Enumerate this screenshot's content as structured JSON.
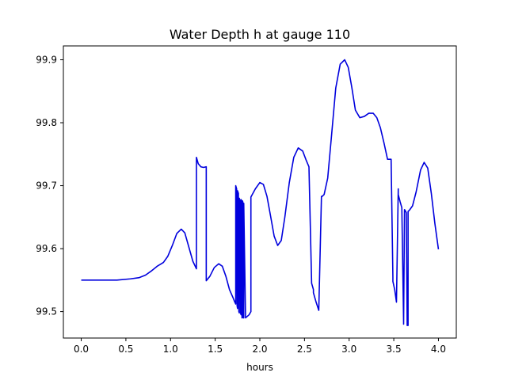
{
  "chart_data": {
    "type": "line",
    "title": "Water Depth h at gauge 110",
    "xlabel": "hours",
    "ylabel": "",
    "xlim": [
      -0.2,
      4.2
    ],
    "ylim": [
      99.458,
      99.922
    ],
    "xticks": [
      0.0,
      0.5,
      1.0,
      1.5,
      2.0,
      2.5,
      3.0,
      3.5,
      4.0
    ],
    "xtick_labels": [
      "0.0",
      "0.5",
      "1.0",
      "1.5",
      "2.0",
      "2.5",
      "3.0",
      "3.5",
      "4.0"
    ],
    "yticks": [
      99.5,
      99.6,
      99.7,
      99.8,
      99.9
    ],
    "ytick_labels": [
      "99.5",
      "99.6",
      "99.7",
      "99.8",
      "99.9"
    ],
    "grid": false,
    "line_color": "#0000dd",
    "series": [
      {
        "x": [
          0.0,
          0.2,
          0.4,
          0.55,
          0.65,
          0.72,
          0.78,
          0.85,
          0.92,
          0.97,
          1.02,
          1.07,
          1.12,
          1.16,
          1.2,
          1.25,
          1.29,
          1.29,
          1.31,
          1.34,
          1.37,
          1.4,
          1.4,
          1.44,
          1.49,
          1.54,
          1.58,
          1.62,
          1.66,
          1.7,
          1.72,
          1.73,
          1.73,
          1.74,
          1.745,
          1.75,
          1.75,
          1.76,
          1.765,
          1.77,
          1.77,
          1.78,
          1.785,
          1.79,
          1.79,
          1.795,
          1.8,
          1.805,
          1.805,
          1.81,
          1.815,
          1.82,
          1.82,
          1.84,
          1.88,
          1.9,
          1.9,
          1.95,
          2.0,
          2.04,
          2.08,
          2.12,
          2.16,
          2.2,
          2.24,
          2.28,
          2.33,
          2.38,
          2.43,
          2.48,
          2.52,
          2.55,
          2.58,
          2.6,
          2.6,
          2.63,
          2.66,
          2.69,
          2.69,
          2.72,
          2.76,
          2.8,
          2.85,
          2.9,
          2.95,
          2.99,
          3.03,
          3.07,
          3.12,
          3.17,
          3.22,
          3.27,
          3.31,
          3.35,
          3.39,
          3.43,
          3.47,
          3.49,
          3.49,
          3.51,
          3.53,
          3.55,
          3.55,
          3.57,
          3.59,
          3.61,
          3.61,
          3.62,
          3.63,
          3.64,
          3.65,
          3.66,
          3.66,
          3.68,
          3.71,
          3.75,
          3.8,
          3.84,
          3.88,
          3.92,
          3.96,
          4.0
        ],
        "y": [
          99.55,
          99.55,
          99.55,
          99.552,
          99.554,
          99.558,
          99.564,
          99.572,
          99.578,
          99.588,
          99.605,
          99.624,
          99.631,
          99.625,
          99.605,
          99.58,
          99.568,
          99.745,
          99.735,
          99.73,
          99.729,
          99.73,
          99.549,
          99.556,
          99.57,
          99.576,
          99.572,
          99.556,
          99.535,
          99.522,
          99.515,
          99.512,
          99.7,
          99.695,
          99.51,
          99.505,
          99.692,
          99.688,
          99.5,
          99.498,
          99.68,
          99.675,
          99.497,
          99.495,
          99.678,
          99.676,
          99.49,
          99.492,
          99.676,
          99.674,
          99.49,
          99.49,
          99.672,
          99.49,
          99.495,
          99.5,
          99.682,
          99.695,
          99.705,
          99.702,
          99.683,
          99.652,
          99.62,
          99.605,
          99.613,
          99.65,
          99.705,
          99.745,
          99.76,
          99.755,
          99.74,
          99.73,
          99.545,
          99.535,
          99.53,
          99.515,
          99.502,
          99.683,
          99.682,
          99.686,
          99.712,
          99.775,
          99.855,
          99.893,
          99.9,
          99.888,
          99.856,
          99.82,
          99.808,
          99.81,
          99.815,
          99.815,
          99.808,
          99.792,
          99.768,
          99.742,
          99.742,
          99.555,
          99.548,
          99.535,
          99.515,
          99.695,
          99.686,
          99.675,
          99.665,
          99.483,
          99.48,
          99.662,
          99.66,
          99.657,
          99.478,
          99.478,
          99.659,
          99.662,
          99.668,
          99.69,
          99.725,
          99.737,
          99.728,
          99.688,
          99.64,
          99.599
        ]
      }
    ]
  }
}
